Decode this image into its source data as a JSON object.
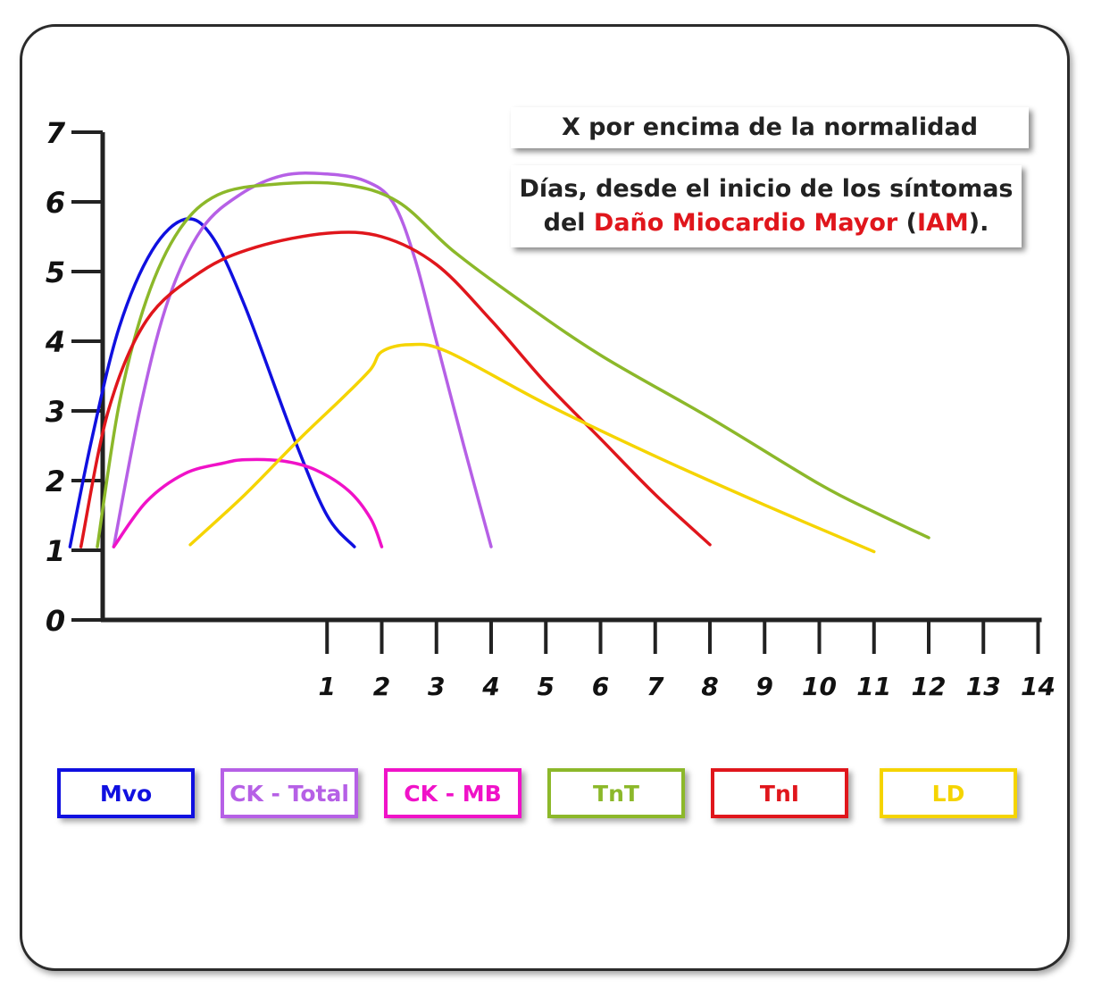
{
  "ylabel": "X por encima de la normalidad",
  "xlabel": {
    "line1": "Días, desde el inicio de los síntomas",
    "line2_pre": "del ",
    "line2_red1": "Daño Miocardio Mayor",
    "line2_paren_open": " (",
    "line2_red2": "IAM",
    "line2_post": ")."
  },
  "colors": {
    "Mvo": "#1010e0",
    "CK - Total": "#b660e6",
    "CK - MB": "#f012c8",
    "TnT": "#8cb82a",
    "TnI": "#e0161c",
    "LD": "#f5d400"
  },
  "legend": [
    {
      "label": "Mvo",
      "color": "#1010e0"
    },
    {
      "label": "CK - Total",
      "color": "#b660e6"
    },
    {
      "label": "CK - MB",
      "color": "#f012c8"
    },
    {
      "label": "TnT",
      "color": "#8cb82a"
    },
    {
      "label": "TnI",
      "color": "#e0161c"
    },
    {
      "label": "LD",
      "color": "#f5d400"
    }
  ],
  "chart_data": {
    "type": "line",
    "title": "",
    "xlabel": "Días, desde el inicio de los síntomas del Daño Miocardio Mayor (IAM).",
    "ylabel": "X por encima de la normalidad",
    "xlim": [
      -4,
      14
    ],
    "ylim": [
      0,
      7
    ],
    "x_ticks": [
      1,
      2,
      3,
      4,
      5,
      6,
      7,
      8,
      9,
      10,
      11,
      12,
      13,
      14
    ],
    "y_ticks": [
      0,
      1,
      2,
      3,
      4,
      5,
      6,
      7
    ],
    "grid": false,
    "legend_position": "bottom",
    "series": [
      {
        "name": "Mvo",
        "color": "#1010e0",
        "points": [
          [
            -3.7,
            1.05
          ],
          [
            -3.3,
            2.6
          ],
          [
            -2.8,
            4.2
          ],
          [
            -2.2,
            5.3
          ],
          [
            -1.6,
            5.75
          ],
          [
            -1.1,
            5.5
          ],
          [
            -0.5,
            4.5
          ],
          [
            0.4,
            2.6
          ],
          [
            1.0,
            1.5
          ],
          [
            1.5,
            1.05
          ]
        ]
      },
      {
        "name": "CK - Total",
        "color": "#b660e6",
        "points": [
          [
            -2.9,
            1.05
          ],
          [
            -2.4,
            3.1
          ],
          [
            -1.9,
            4.6
          ],
          [
            -1.3,
            5.6
          ],
          [
            -0.6,
            6.1
          ],
          [
            0.2,
            6.38
          ],
          [
            1.0,
            6.4
          ],
          [
            1.7,
            6.3
          ],
          [
            2.2,
            6.0
          ],
          [
            2.6,
            5.2
          ],
          [
            3.0,
            4.0
          ],
          [
            3.5,
            2.5
          ],
          [
            4.0,
            1.05
          ]
        ]
      },
      {
        "name": "CK - MB",
        "color": "#f012c8",
        "points": [
          [
            -2.9,
            1.05
          ],
          [
            -2.3,
            1.7
          ],
          [
            -1.6,
            2.1
          ],
          [
            -0.9,
            2.25
          ],
          [
            -0.5,
            2.3
          ],
          [
            0.2,
            2.28
          ],
          [
            0.8,
            2.15
          ],
          [
            1.4,
            1.85
          ],
          [
            1.8,
            1.45
          ],
          [
            2.0,
            1.05
          ]
        ]
      },
      {
        "name": "TnT",
        "color": "#8cb82a",
        "points": [
          [
            -3.2,
            1.05
          ],
          [
            -2.8,
            3.1
          ],
          [
            -2.3,
            4.6
          ],
          [
            -1.7,
            5.6
          ],
          [
            -1.0,
            6.1
          ],
          [
            0,
            6.25
          ],
          [
            1.3,
            6.25
          ],
          [
            2.3,
            6.0
          ],
          [
            3.3,
            5.3
          ],
          [
            4.5,
            4.6
          ],
          [
            6,
            3.8
          ],
          [
            8,
            2.9
          ],
          [
            10,
            1.95
          ],
          [
            11,
            1.55
          ],
          [
            12,
            1.18
          ]
        ]
      },
      {
        "name": "TnI",
        "color": "#e0161c",
        "points": [
          [
            -3.5,
            1.05
          ],
          [
            -3.0,
            3.0
          ],
          [
            -2.3,
            4.3
          ],
          [
            -1.3,
            5.0
          ],
          [
            -0.3,
            5.35
          ],
          [
            1.0,
            5.55
          ],
          [
            2.0,
            5.5
          ],
          [
            3.0,
            5.1
          ],
          [
            4.0,
            4.3
          ],
          [
            5.0,
            3.4
          ],
          [
            6.0,
            2.6
          ],
          [
            7.0,
            1.8
          ],
          [
            8.0,
            1.08
          ]
        ]
      },
      {
        "name": "LD",
        "color": "#f5d400",
        "points": [
          [
            -1.5,
            1.08
          ],
          [
            -0.5,
            1.8
          ],
          [
            0.5,
            2.6
          ],
          [
            1.3,
            3.2
          ],
          [
            1.8,
            3.6
          ],
          [
            2.0,
            3.85
          ],
          [
            2.5,
            3.95
          ],
          [
            3.2,
            3.85
          ],
          [
            5,
            3.1
          ],
          [
            7,
            2.35
          ],
          [
            9,
            1.65
          ],
          [
            11,
            0.98
          ]
        ]
      }
    ]
  }
}
